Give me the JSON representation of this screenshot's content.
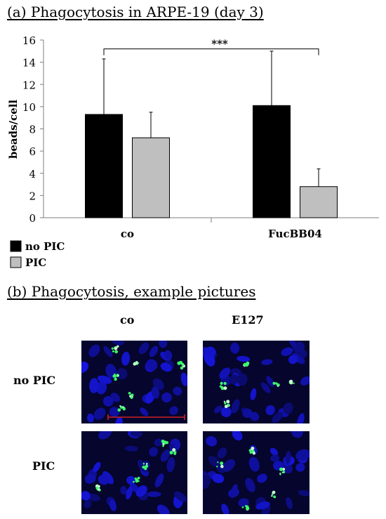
{
  "panel_a": {
    "title": "(a) Phagocytosis in ARPE-19 (day 3)"
  },
  "chart_data": {
    "type": "bar",
    "title": "(a) Phagocytosis in ARPE-19 (day 3)",
    "categories": [
      "co",
      "FucBB04"
    ],
    "series": [
      {
        "name": "no PIC",
        "values": [
          9.3,
          10.1
        ],
        "errors": [
          5.0,
          4.9
        ],
        "color": "#000000"
      },
      {
        "name": "PIC",
        "values": [
          7.2,
          2.8
        ],
        "errors": [
          2.3,
          1.6
        ],
        "color": "#bfbfbf"
      }
    ],
    "ylabel": "beads/cell",
    "xlabel": "",
    "ylim": [
      0,
      16
    ],
    "yticks": [
      0,
      2,
      4,
      6,
      8,
      10,
      12,
      14,
      16
    ],
    "legend_position": "bottom-left",
    "grid": false,
    "annotations": [
      {
        "text": "***",
        "from": "co / no PIC",
        "to": "FucBB04 / PIC"
      }
    ]
  },
  "panel_b": {
    "title": "(b) Phagocytosis, example pictures",
    "columns": [
      "co",
      "E127"
    ],
    "rows": [
      "no PIC",
      "PIC"
    ],
    "scale_bar_color": "#cc2222"
  }
}
